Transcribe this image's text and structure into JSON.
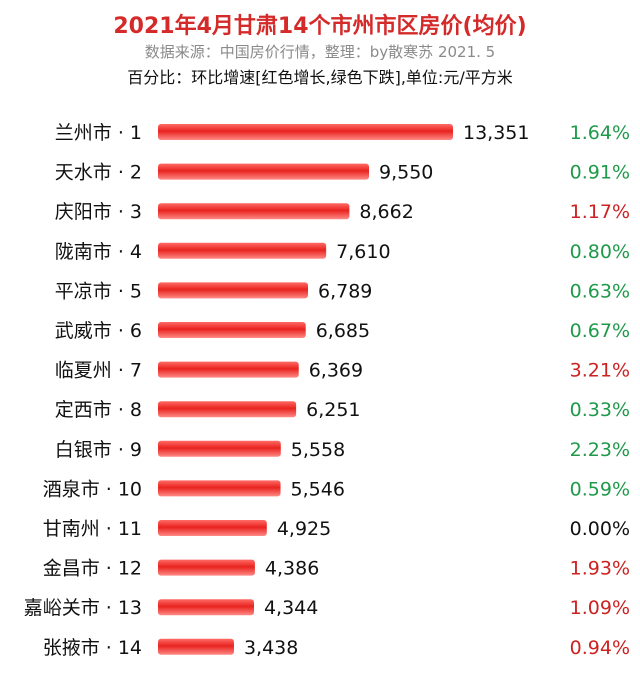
{
  "header": {
    "title": "2021年4月甘肃14个市州市区房价(均价)",
    "source": "数据来源：中国房价行情，整理：by散寒苏  2021. 5",
    "note": "百分比：环比增速[红色增长,绿色下跌],单位:元/平方米"
  },
  "colors": {
    "bar": "#e8231f",
    "increase": "#cc2222",
    "decrease": "#1f9a4a",
    "neutral": "#111111",
    "title": "#d42a2a"
  },
  "chart_data": {
    "type": "bar",
    "orientation": "horizontal",
    "categories": [
      "兰州市 · 1",
      "天水市 · 2",
      "庆阳市 · 3",
      "陇南市 · 4",
      "平凉市 · 5",
      "武威市 · 6",
      "临夏州 · 7",
      "定西市 · 8",
      "白银市 · 9",
      "酒泉市 · 10",
      "甘南州 · 11",
      "金昌市 · 12",
      "嘉峪关市 · 13",
      "张掖市 · 14"
    ],
    "values": [
      13351,
      9550,
      8662,
      7610,
      6789,
      6685,
      6369,
      6251,
      5558,
      5546,
      4925,
      4386,
      4344,
      3438
    ],
    "value_labels": [
      "13,351",
      "9,550",
      "8,662",
      "7,610",
      "6,789",
      "6,685",
      "6,369",
      "6,251",
      "5,558",
      "5,546",
      "4,925",
      "4,386",
      "4,344",
      "3,438"
    ],
    "pct_labels": [
      "1.64%",
      "0.91%",
      "1.17%",
      "0.80%",
      "0.63%",
      "0.67%",
      "3.21%",
      "0.33%",
      "2.23%",
      "0.59%",
      "0.00%",
      "1.93%",
      "1.09%",
      "0.94%"
    ],
    "pct_direction": [
      "down",
      "down",
      "up",
      "down",
      "down",
      "down",
      "up",
      "down",
      "down",
      "down",
      "flat",
      "up",
      "up",
      "up"
    ],
    "xlim": [
      0,
      13351
    ],
    "grid": false,
    "legend": "none"
  }
}
